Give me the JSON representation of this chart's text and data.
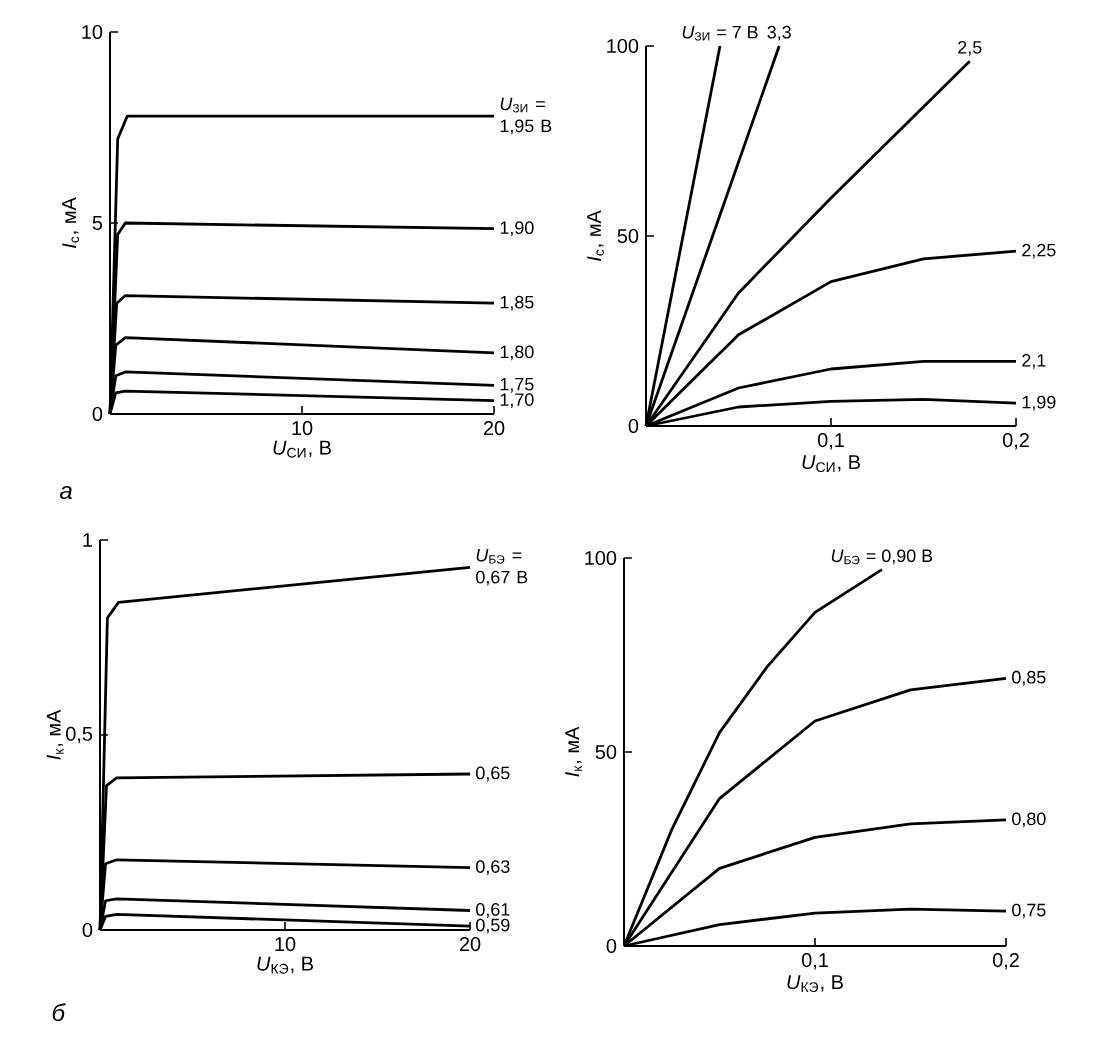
{
  "chart_data": [
    {
      "type": "line",
      "xlabel": "*U*$_{СИ}$, В",
      "ylabel": "*I*$_{с}$, мА",
      "xlim": [
        0,
        20
      ],
      "ylim": [
        0,
        10
      ],
      "xticks": [
        {
          "value": 0,
          "label": null
        },
        10,
        20
      ],
      "yticks": [
        0,
        5,
        10
      ],
      "line_style": "solid",
      "annotations": [
        "а"
      ],
      "series": [
        {
          "name": "*U*$_{ЗИ}$ = 1,95 В",
          "color": "#000000",
          "x": [
            0,
            0.4,
            0.9,
            20
          ],
          "values": [
            0,
            7.2,
            7.8,
            7.8
          ]
        },
        {
          "name": "1,90",
          "color": "#000000",
          "x": [
            0,
            0.4,
            0.8,
            20
          ],
          "values": [
            0,
            4.7,
            5.0,
            4.85
          ]
        },
        {
          "name": "1,85",
          "color": "#000000",
          "x": [
            0,
            0.35,
            0.8,
            20
          ],
          "values": [
            0,
            2.9,
            3.1,
            2.9
          ]
        },
        {
          "name": "1,80",
          "color": "#000000",
          "x": [
            0,
            0.3,
            0.8,
            20
          ],
          "values": [
            0,
            1.8,
            2.0,
            1.6
          ]
        },
        {
          "name": "1,75",
          "color": "#000000",
          "x": [
            0,
            0.3,
            0.8,
            20
          ],
          "values": [
            0,
            1.0,
            1.1,
            0.75
          ]
        },
        {
          "name": "1,70",
          "color": "#000000",
          "x": [
            0,
            0.3,
            0.8,
            20
          ],
          "values": [
            0,
            0.55,
            0.6,
            0.35
          ]
        }
      ]
    },
    {
      "type": "line",
      "xlabel": "*U*$_{СИ}$, В",
      "ylabel": "*I*$_{с}$, мА",
      "xlim": [
        0,
        0.2
      ],
      "ylim": [
        0,
        100
      ],
      "xticks": [
        {
          "value": 0,
          "label": null
        },
        {
          "value": 0.1,
          "label": "0,1"
        },
        {
          "value": 0.2,
          "label": "0,2"
        }
      ],
      "yticks": [
        0,
        50,
        100
      ],
      "line_style": "solid",
      "series": [
        {
          "name": "*U*$_{ЗИ}$ = 7 В",
          "color": "#000000",
          "x": [
            0,
            0.04
          ],
          "values": [
            0,
            100
          ]
        },
        {
          "name": "3,3",
          "color": "#000000",
          "x": [
            0,
            0.036,
            0.072
          ],
          "values": [
            0,
            50,
            100
          ]
        },
        {
          "name": "2,5",
          "color": "#000000",
          "x": [
            0,
            0.05,
            0.1,
            0.15,
            0.175
          ],
          "values": [
            0,
            35,
            60,
            84,
            96
          ]
        },
        {
          "name": "2,25",
          "color": "#000000",
          "x": [
            0,
            0.05,
            0.1,
            0.15,
            0.2
          ],
          "values": [
            0,
            24,
            38,
            44,
            46
          ]
        },
        {
          "name": "2,1",
          "color": "#000000",
          "x": [
            0,
            0.05,
            0.1,
            0.15,
            0.2
          ],
          "values": [
            0,
            10,
            15,
            17,
            17
          ]
        },
        {
          "name": "1,99",
          "color": "#000000",
          "x": [
            0,
            0.05,
            0.1,
            0.15,
            0.2
          ],
          "values": [
            0,
            5,
            6.5,
            7,
            6
          ]
        }
      ]
    },
    {
      "type": "line",
      "xlabel": "*U*$_{КЭ}$, В",
      "ylabel": "*I*$_{к}$, мА",
      "xlim": [
        0,
        20
      ],
      "ylim": [
        0,
        1
      ],
      "xticks": [
        {
          "value": 0,
          "label": null
        },
        10,
        20
      ],
      "yticks": [
        0,
        {
          "value": 0.5,
          "label": "0,5"
        },
        1
      ],
      "line_style": "solid",
      "annotations": [
        "б"
      ],
      "series": [
        {
          "name": "*U*$_{БЭ}$ = 0,67 В",
          "color": "#000000",
          "x": [
            0,
            0.4,
            1,
            20
          ],
          "values": [
            0,
            0.8,
            0.84,
            0.93
          ]
        },
        {
          "name": "0,65",
          "color": "#000000",
          "x": [
            0,
            0.35,
            0.9,
            20
          ],
          "values": [
            0,
            0.37,
            0.39,
            0.4
          ]
        },
        {
          "name": "0,63",
          "color": "#000000",
          "x": [
            0,
            0.3,
            0.9,
            20
          ],
          "values": [
            0,
            0.17,
            0.18,
            0.16
          ]
        },
        {
          "name": "0,61",
          "color": "#000000",
          "x": [
            0,
            0.3,
            0.9,
            20
          ],
          "values": [
            0,
            0.075,
            0.08,
            0.05
          ]
        },
        {
          "name": "0,59",
          "color": "#000000",
          "x": [
            0,
            0.3,
            0.9,
            20
          ],
          "values": [
            0,
            0.035,
            0.04,
            0.01
          ]
        }
      ]
    },
    {
      "type": "line",
      "xlabel": "*U*$_{КЭ}$, В",
      "ylabel": "*I*$_{к}$, мА",
      "xlim": [
        0,
        0.2
      ],
      "ylim": [
        0,
        100
      ],
      "xticks": [
        {
          "value": 0,
          "label": null
        },
        {
          "value": 0.1,
          "label": "0,1"
        },
        {
          "value": 0.2,
          "label": "0,2"
        }
      ],
      "yticks": [
        0,
        50,
        100
      ],
      "line_style": "solid",
      "series": [
        {
          "name": "*U*$_{БЭ}$ = 0,90 В",
          "color": "#000000",
          "x": [
            0,
            0.025,
            0.05,
            0.075,
            0.1,
            0.135
          ],
          "values": [
            0,
            30,
            55,
            72,
            86,
            97
          ]
        },
        {
          "name": "0,85",
          "color": "#000000",
          "x": [
            0,
            0.05,
            0.1,
            0.15,
            0.2
          ],
          "values": [
            0,
            38,
            58,
            66,
            69
          ]
        },
        {
          "name": "0,80",
          "color": "#000000",
          "x": [
            0,
            0.05,
            0.1,
            0.15,
            0.2
          ],
          "values": [
            0,
            20,
            28,
            31.5,
            32.5
          ]
        },
        {
          "name": "0,75",
          "color": "#000000",
          "x": [
            0,
            0.05,
            0.1,
            0.15,
            0.2
          ],
          "values": [
            0,
            5.5,
            8.5,
            9.5,
            9
          ]
        }
      ]
    }
  ]
}
